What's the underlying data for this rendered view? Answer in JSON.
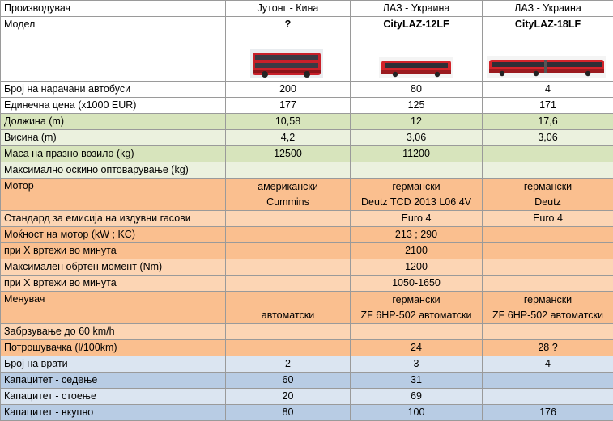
{
  "header": {
    "label": "Производувач",
    "makers": [
      "Јутонг - Кина",
      "ЛАЗ - Украина",
      "ЛАЗ - Украина"
    ]
  },
  "model": {
    "label": "Модел",
    "names": [
      "?",
      "CityLAZ-12LF",
      "CityLAZ-18LF"
    ]
  },
  "rows": {
    "ordered": {
      "label": "Број на нарачани автобуси",
      "v": [
        "200",
        "80",
        "4"
      ]
    },
    "price": {
      "label": "Единечна цена (x1000 EUR)",
      "v": [
        "177",
        "125",
        "171"
      ]
    },
    "length": {
      "label": "Должина (m)",
      "v": [
        "10,58",
        "12",
        "17,6"
      ]
    },
    "height": {
      "label": "Висина (m)",
      "v": [
        "4,2",
        "3,06",
        "3,06"
      ]
    },
    "mass": {
      "label": "Маса на празно возило (kg)",
      "v": [
        "12500",
        "11200",
        ""
      ]
    },
    "axle": {
      "label": "Максимално оскино оптоварување (kg)",
      "v": [
        "",
        "",
        ""
      ]
    },
    "engine": {
      "label": "Мотор",
      "line1": [
        "американски",
        "германски",
        "германски"
      ],
      "line2": [
        "Cummins",
        "Deutz TCD 2013 L06 4V",
        "Deutz"
      ]
    },
    "emission": {
      "label": "Стандард за емисија на издувни гасови",
      "v": [
        "",
        "Euro 4",
        "Euro 4"
      ]
    },
    "power": {
      "label": "Моќност на мотор (kW ; KC)",
      "v": [
        "",
        "213 ; 290",
        ""
      ]
    },
    "power_rpm": {
      "label": "при X вртежи во минута",
      "v": [
        "",
        "2100",
        ""
      ]
    },
    "torque": {
      "label": "Максимален обртен момент (Nm)",
      "v": [
        "",
        "1200",
        ""
      ]
    },
    "torque_rpm": {
      "label": "при X вртежи во минута",
      "v": [
        "",
        "1050-1650",
        ""
      ]
    },
    "gearbox": {
      "label": "Менувач",
      "line1": [
        "",
        "германски",
        "германски"
      ],
      "line2": [
        "автоматски",
        "ZF 6HP-502 автоматски",
        "ZF 6HP-502 автоматски"
      ]
    },
    "accel": {
      "label": "Забрзување до 60 km/h",
      "v": [
        "",
        "",
        ""
      ]
    },
    "consumption": {
      "label": "Потрошувачка (l/100km)",
      "v": [
        "",
        "24",
        "28 ?"
      ]
    },
    "doors": {
      "label": "Број на врати",
      "v": [
        "2",
        "3",
        "4"
      ]
    },
    "seated": {
      "label": "Капацитет - седење",
      "v": [
        "60",
        "31",
        ""
      ]
    },
    "standing": {
      "label": "Капацитет - стоење",
      "v": [
        "20",
        "69",
        ""
      ]
    },
    "total": {
      "label": "Капацитет - вкупно",
      "v": [
        "80",
        "100",
        "176"
      ]
    }
  },
  "colors": {
    "green_dark": "#d7e4bc",
    "green_light": "#ebf1de",
    "orange_dark": "#fabf8f",
    "orange_light": "#fcd5b4",
    "blue_light": "#dbe5f1",
    "blue_dark": "#b8cce4",
    "bus_red": "#d2232a"
  }
}
